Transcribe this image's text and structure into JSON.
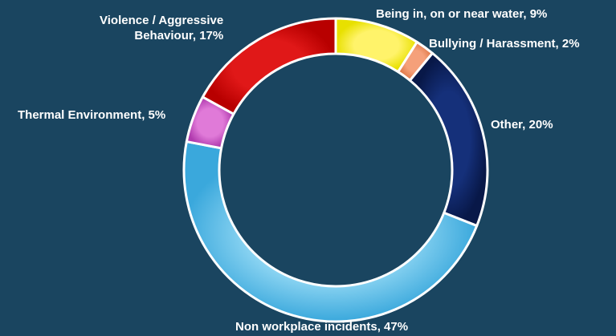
{
  "chart_data": {
    "type": "pie",
    "donut": true,
    "title": "",
    "legend": "none",
    "slices": [
      {
        "label": "Being in, on or near water",
        "value": 9,
        "text": "Being in, on or near water, 9%",
        "color": "#ffff00"
      },
      {
        "label": "Bullying / Harassment",
        "value": 2,
        "text": "Bullying / Harassment, 2%",
        "color": "#ee8a5a"
      },
      {
        "label": "Other",
        "value": 20,
        "text": "Other, 20%",
        "color": "#0b1f5c"
      },
      {
        "label": "Non workplace incidents",
        "value": 47,
        "text": "Non workplace incidents, 47%",
        "color": "#5bbde6"
      },
      {
        "label": "Thermal Environment",
        "value": 5,
        "text": "Thermal Environment, 5%",
        "color": "#c458c0"
      },
      {
        "label": "Violence / Aggressive Behaviour",
        "value": 17,
        "text": "Violence / Aggressive Behaviour, 17%",
        "text_lines": [
          "Violence / Aggressive",
          "Behaviour, 17%"
        ],
        "color": "#cc0000"
      }
    ]
  }
}
